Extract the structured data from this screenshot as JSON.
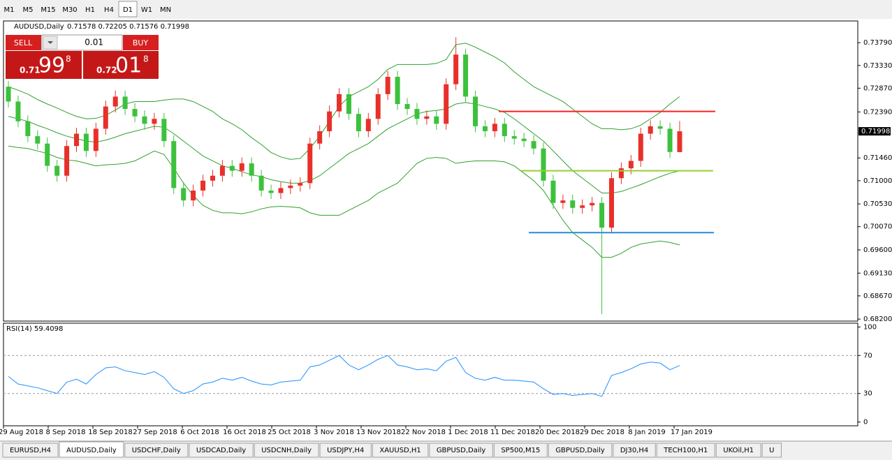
{
  "toolbar": {
    "timeframes": [
      "M1",
      "M5",
      "M15",
      "M30",
      "H1",
      "H4",
      "D1",
      "W1",
      "MN"
    ],
    "active": "D1"
  },
  "trade_panel": {
    "sell": "SELL",
    "buy": "BUY",
    "lot": "0.01",
    "bid": {
      "prefix": "0.71",
      "main": "99",
      "sup": "8"
    },
    "ask": {
      "prefix": "0.72",
      "main": "01",
      "sup": "8"
    }
  },
  "chart_data": [
    {
      "type": "candlestick",
      "title": "AUDUSD,Daily",
      "subtitle": "0.71578 0.72205 0.71576 0.71998",
      "up_color": "#e8302a",
      "down_color": "#3cc13c",
      "open": [
        0.729,
        0.726,
        0.722,
        0.719,
        0.7175,
        0.713,
        0.711,
        0.717,
        0.7195,
        0.716,
        0.7205,
        0.725,
        0.727,
        0.7245,
        0.723,
        0.7215,
        0.7225,
        0.718,
        0.7085,
        0.706,
        0.708,
        0.71,
        0.711,
        0.713,
        0.712,
        0.7135,
        0.711,
        0.708,
        0.7075,
        0.7085,
        0.709,
        0.7095,
        0.7175,
        0.72,
        0.724,
        0.7275,
        0.7235,
        0.72,
        0.7225,
        0.7275,
        0.731,
        0.7255,
        0.7245,
        0.7225,
        0.723,
        0.7215,
        0.7295,
        0.7355,
        0.727,
        0.721,
        0.72,
        0.7215,
        0.719,
        0.7185,
        0.718,
        0.7165,
        0.71,
        0.7055,
        0.706,
        0.7045,
        0.705,
        0.7055,
        0.7005,
        0.7105,
        0.7125,
        0.714,
        0.7195,
        0.721,
        0.7205,
        0.71578
      ],
      "high": [
        0.7302,
        0.7272,
        0.7232,
        0.7202,
        0.7187,
        0.7142,
        0.7182,
        0.7207,
        0.7207,
        0.7217,
        0.7262,
        0.7282,
        0.7282,
        0.7257,
        0.7242,
        0.7237,
        0.7237,
        0.7192,
        0.7097,
        0.7092,
        0.7112,
        0.7122,
        0.7142,
        0.7142,
        0.7147,
        0.7147,
        0.7122,
        0.7092,
        0.7097,
        0.7102,
        0.7107,
        0.7187,
        0.7212,
        0.7252,
        0.7287,
        0.7287,
        0.7247,
        0.7237,
        0.7287,
        0.7322,
        0.7322,
        0.7267,
        0.7257,
        0.7242,
        0.7242,
        0.7307,
        0.739,
        0.7367,
        0.7282,
        0.7222,
        0.7227,
        0.7227,
        0.7202,
        0.7197,
        0.7192,
        0.7177,
        0.7112,
        0.7072,
        0.7072,
        0.7062,
        0.7067,
        0.7067,
        0.7117,
        0.7137,
        0.7152,
        0.7207,
        0.7222,
        0.7222,
        0.7217,
        0.72205
      ],
      "low": [
        0.7248,
        0.7208,
        0.7178,
        0.7163,
        0.7118,
        0.7098,
        0.7098,
        0.7158,
        0.7148,
        0.7148,
        0.7193,
        0.7238,
        0.7233,
        0.7218,
        0.7203,
        0.7203,
        0.7168,
        0.7073,
        0.7048,
        0.7048,
        0.7068,
        0.7088,
        0.7098,
        0.7108,
        0.7108,
        0.7098,
        0.7068,
        0.7063,
        0.7063,
        0.7073,
        0.7078,
        0.7083,
        0.7163,
        0.7188,
        0.7228,
        0.7223,
        0.7188,
        0.7188,
        0.7213,
        0.7263,
        0.7243,
        0.7233,
        0.7213,
        0.7213,
        0.7203,
        0.7203,
        0.7283,
        0.7258,
        0.7198,
        0.7188,
        0.7188,
        0.7178,
        0.7173,
        0.7168,
        0.7153,
        0.7088,
        0.7043,
        0.7043,
        0.7033,
        0.7033,
        0.7038,
        0.683,
        0.6993,
        0.7093,
        0.7113,
        0.7128,
        0.7183,
        0.7193,
        0.7146,
        0.71576
      ],
      "close": [
        0.726,
        0.722,
        0.719,
        0.7175,
        0.713,
        0.711,
        0.717,
        0.7195,
        0.716,
        0.7205,
        0.725,
        0.727,
        0.7245,
        0.723,
        0.7215,
        0.7225,
        0.718,
        0.7085,
        0.706,
        0.708,
        0.71,
        0.711,
        0.713,
        0.712,
        0.7135,
        0.711,
        0.708,
        0.7075,
        0.7085,
        0.709,
        0.7095,
        0.7175,
        0.72,
        0.724,
        0.7275,
        0.7235,
        0.72,
        0.7225,
        0.7275,
        0.731,
        0.7255,
        0.7245,
        0.7225,
        0.723,
        0.7215,
        0.7295,
        0.7355,
        0.727,
        0.721,
        0.72,
        0.7215,
        0.719,
        0.7185,
        0.718,
        0.7165,
        0.71,
        0.7055,
        0.706,
        0.7045,
        0.705,
        0.7055,
        0.7005,
        0.7105,
        0.7125,
        0.714,
        0.7195,
        0.721,
        0.7205,
        0.7158,
        0.71998
      ],
      "bands": [
        {
          "color": "#2ea02e",
          "values": [
            0.729,
            0.7283,
            0.7275,
            0.7264,
            0.7255,
            0.7247,
            0.7238,
            0.723,
            0.7225,
            0.7226,
            0.7232,
            0.7243,
            0.7255,
            0.726,
            0.726,
            0.726,
            0.7263,
            0.7265,
            0.7265,
            0.726,
            0.725,
            0.724,
            0.7225,
            0.7215,
            0.7203,
            0.7187,
            0.7173,
            0.7157,
            0.7148,
            0.7143,
            0.7145,
            0.7165,
            0.719,
            0.722,
            0.725,
            0.727,
            0.728,
            0.729,
            0.7305,
            0.7325,
            0.7335,
            0.7335,
            0.7335,
            0.7335,
            0.7337,
            0.7345,
            0.7375,
            0.7378,
            0.737,
            0.736,
            0.735,
            0.7338,
            0.732,
            0.7305,
            0.729,
            0.728,
            0.727,
            0.726,
            0.7245,
            0.723,
            0.7215,
            0.7205,
            0.7205,
            0.7203,
            0.7205,
            0.7212,
            0.7225,
            0.7238,
            0.7255,
            0.727
          ]
        },
        {
          "color": "#2ea02e",
          "values": [
            0.723,
            0.7225,
            0.722,
            0.7212,
            0.7205,
            0.7197,
            0.719,
            0.7185,
            0.718,
            0.7178,
            0.7182,
            0.7188,
            0.7195,
            0.72,
            0.7205,
            0.721,
            0.7208,
            0.7195,
            0.718,
            0.7165,
            0.715,
            0.714,
            0.713,
            0.7125,
            0.7118,
            0.7112,
            0.7108,
            0.7102,
            0.7098,
            0.7095,
            0.7095,
            0.71,
            0.711,
            0.7125,
            0.714,
            0.7155,
            0.7165,
            0.7175,
            0.719,
            0.7205,
            0.7215,
            0.7225,
            0.7235,
            0.724,
            0.7242,
            0.7245,
            0.7255,
            0.7258,
            0.7255,
            0.725,
            0.7245,
            0.7238,
            0.7225,
            0.721,
            0.7195,
            0.718,
            0.716,
            0.714,
            0.712,
            0.7105,
            0.709,
            0.7075,
            0.7075,
            0.7078,
            0.7085,
            0.7092,
            0.71,
            0.7108,
            0.7115,
            0.712
          ]
        },
        {
          "color": "#2ea02e",
          "values": [
            0.717,
            0.7167,
            0.7165,
            0.716,
            0.7155,
            0.7147,
            0.7142,
            0.714,
            0.7135,
            0.713,
            0.7132,
            0.7133,
            0.7135,
            0.714,
            0.715,
            0.716,
            0.7153,
            0.7125,
            0.7095,
            0.707,
            0.705,
            0.704,
            0.7035,
            0.7035,
            0.7033,
            0.7037,
            0.7043,
            0.7047,
            0.7048,
            0.7047,
            0.7045,
            0.7035,
            0.703,
            0.703,
            0.703,
            0.704,
            0.705,
            0.706,
            0.7075,
            0.7085,
            0.7095,
            0.7115,
            0.7135,
            0.7145,
            0.7147,
            0.7145,
            0.7135,
            0.7138,
            0.714,
            0.714,
            0.714,
            0.7138,
            0.713,
            0.7115,
            0.71,
            0.708,
            0.705,
            0.702,
            0.6995,
            0.698,
            0.6965,
            0.6945,
            0.6945,
            0.6953,
            0.6965,
            0.6972,
            0.6975,
            0.6978,
            0.6975,
            0.697
          ]
        }
      ],
      "hlines": [
        {
          "value": 0.724,
          "color": "#ff2020"
        },
        {
          "value": 0.712,
          "color": "#9acd32"
        },
        {
          "value": 0.6995,
          "color": "#2a8ad6"
        }
      ],
      "current_price": {
        "value": 0.71998,
        "label": "0.71998"
      },
      "ylim": [
        0.6816,
        0.7423
      ],
      "yticks": [
        {
          "value": 0.7379,
          "label": "0.73790"
        },
        {
          "value": 0.7333,
          "label": "0.73330"
        },
        {
          "value": 0.7287,
          "label": "0.72870"
        },
        {
          "value": 0.7239,
          "label": "0.72390"
        },
        {
          "value": 0.7146,
          "label": "0.71460"
        },
        {
          "value": 0.71,
          "label": "0.71000"
        },
        {
          "value": 0.7053,
          "label": "0.70530"
        },
        {
          "value": 0.7007,
          "label": "0.70070"
        },
        {
          "value": 0.696,
          "label": "0.69600"
        },
        {
          "value": 0.6913,
          "label": "0.69130"
        },
        {
          "value": 0.6867,
          "label": "0.68670"
        },
        {
          "value": 0.682,
          "label": "0.68200"
        }
      ],
      "x_labels": [
        "29 Aug 2018",
        "8 Sep 2018",
        "18 Sep 2018",
        "27 Sep 2018",
        "6 Oct 2018",
        "16 Oct 2018",
        "25 Oct 2018",
        "3 Nov 2018",
        "13 Nov 2018",
        "22 Nov 2018",
        "1 Dec 2018",
        "11 Dec 2018",
        "20 Dec 2018",
        "29 Dec 2018",
        "8 Jan 2019",
        "17 Jan 2019"
      ]
    },
    {
      "type": "line",
      "title": "RSI(14) 59.4098",
      "color": "#1e90ff",
      "values": [
        48,
        40,
        38,
        36,
        33,
        30,
        42,
        45,
        40,
        50,
        57,
        58,
        54,
        52,
        50,
        53,
        47,
        35,
        30,
        33,
        40,
        42,
        46,
        44,
        47,
        43,
        40,
        39,
        42,
        43,
        44,
        58,
        60,
        65,
        70,
        60,
        55,
        60,
        66,
        70,
        60,
        58,
        55,
        56,
        54,
        64,
        68,
        52,
        46,
        44,
        47,
        44,
        44,
        43,
        42,
        35,
        29,
        30,
        28,
        29,
        30,
        27,
        49,
        52,
        56,
        61,
        63,
        62,
        55,
        59.4098
      ],
      "levels": [
        70,
        30
      ],
      "ylim": [
        -4,
        104
      ],
      "yticks": [
        100,
        70,
        30,
        0
      ]
    }
  ],
  "tabs": {
    "items": [
      "EURUSD,H4",
      "AUDUSD,Daily",
      "USDCHF,Daily",
      "USDCAD,Daily",
      "USDCNH,Daily",
      "USDJPY,H4",
      "XAUUSD,H1",
      "GBPUSD,Daily",
      "SP500,M15",
      "GBPUSD,Daily",
      "DJ30,H4",
      "TECH100,H1",
      "UKOil,H1",
      "U"
    ],
    "active": "AUDUSD,Daily"
  }
}
